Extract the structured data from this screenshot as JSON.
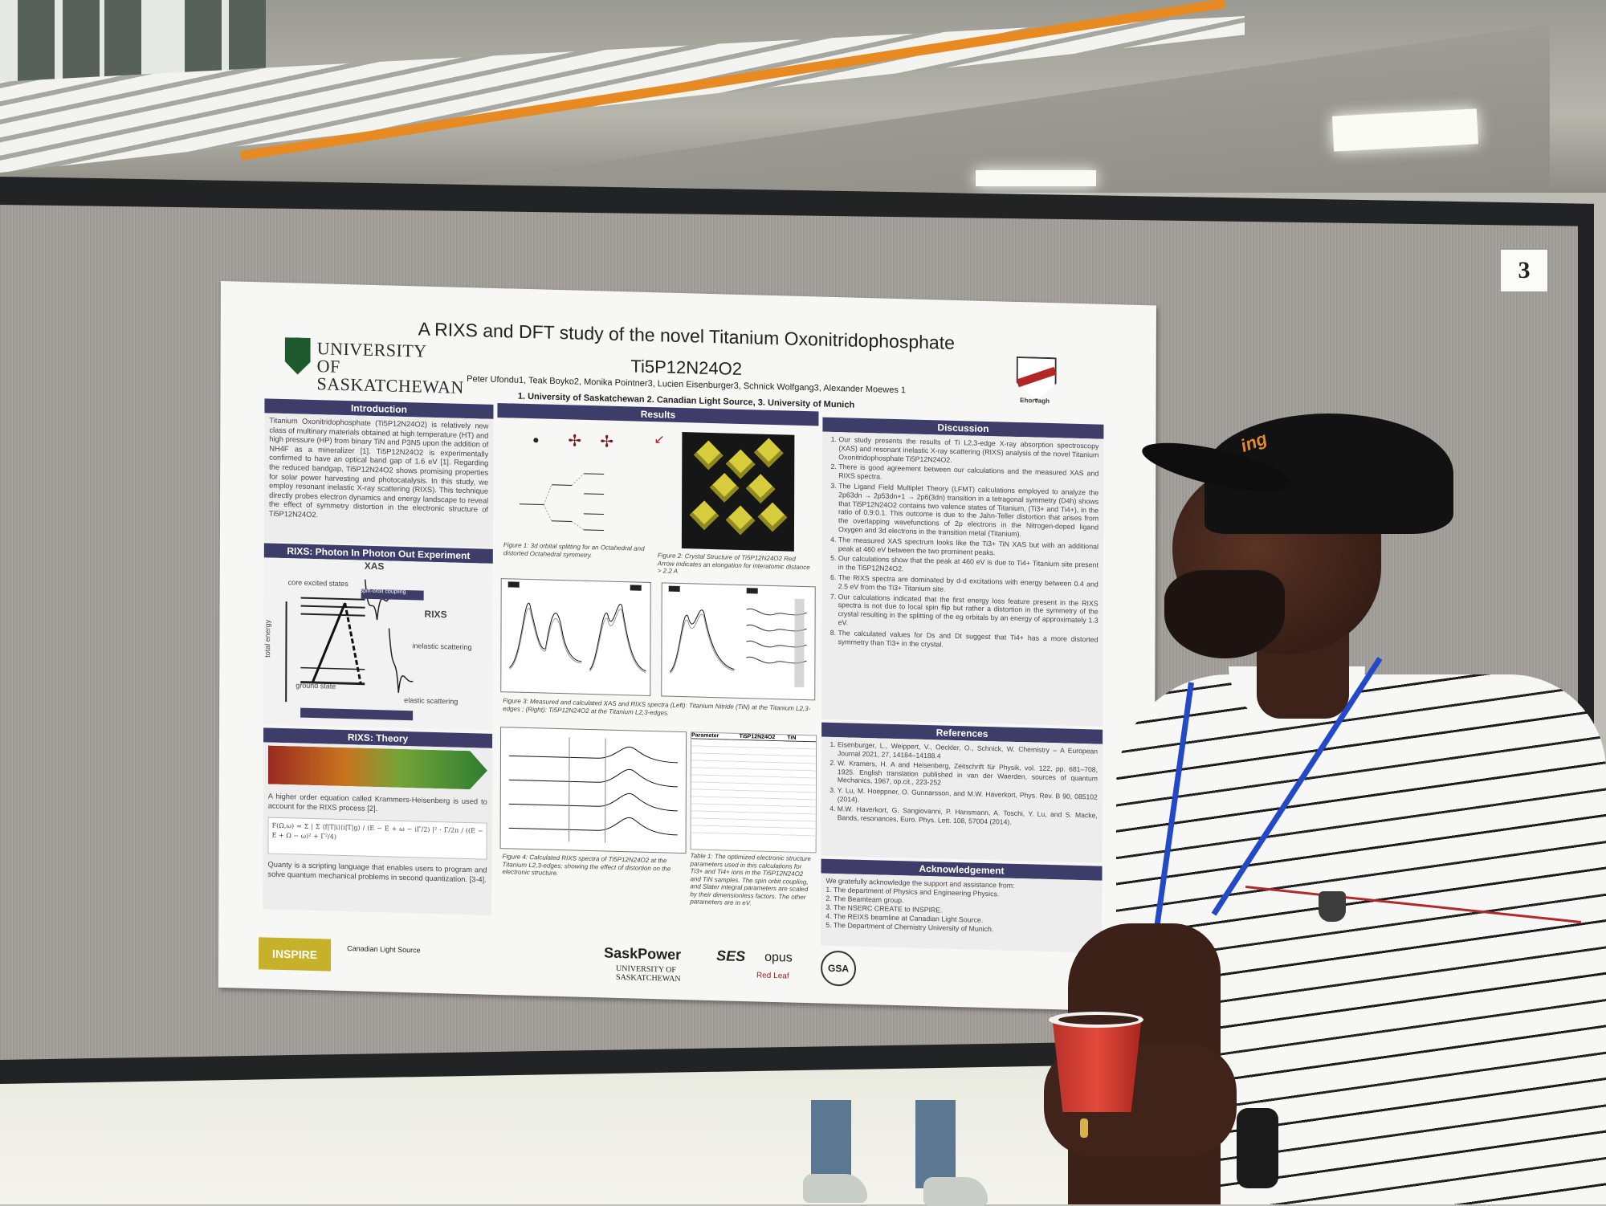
{
  "board_number": "3",
  "poster": {
    "title_line1": "A RIXS and DFT study of the novel Titanium Oxonitridophosphate",
    "title_line2": "Ti5P12N24O2",
    "authors": "Peter Ufondu1, Teak Boyko2, Monika Pointner3, Lucien Eisenburger3, Schnick Wolfgang3, Alexander Moewes 1",
    "affiliations": "1. University of Saskatchewan   2. Canadian Light Source, 3. University of Munich",
    "university_logo": "UNIVERSITY OF SASKATCHEWAN",
    "crest_motto": "Ehorvagh",
    "sections": {
      "introduction": {
        "heading": "Introduction",
        "text": "Titanium Oxonitridophosphate (Ti5P12N24O2) is relatively new class of multinary materials obtained at high temperature (HT) and high pressure (HP) from binary TiN and P3N5 upon the addition of NH4F as a mineralizer [1]. Ti5P12N24O2 is experimentally confirmed to have an optical band gap of 1.6 eV [1]. Regarding the reduced bandgap, Ti5P12N24O2 shows promising properties for solar power harvesting and photocatalysis. In this study, we employ resonant inelastic X-ray scattering (RIXS). This technique directly probes electron dynamics and energy landscape to reveal the effect of symmetry distortion in the electronic structure of Ti5P12N24O2."
      },
      "rixs_experiment": {
        "heading": "RIXS: Photon In Photon Out Experiment",
        "labels": [
          "XAS",
          "core excited states",
          "spin-orbit coupling",
          "RIXS",
          "total energy",
          "inelastic scattering",
          "ground state",
          "elastic scattering"
        ]
      },
      "rixs_theory": {
        "heading": "RIXS: Theory",
        "text1": "A higher order equation called Krammers-Heisenberg is used to account for the RIXS process [2].",
        "text2": "Quanty is a scripting language that enables users to program and solve quantum mechanical problems in second quantization. [3-4]."
      },
      "results": {
        "heading": "Results",
        "fig1": "Figure 1: 3d orbital splitting for an Octahedral and distorted Octahedral symmetry.",
        "fig2": "Figure 2: Crystal Structure of Ti5P12N24O2 Red Arrow indicates an elongation for interatomic distance > 2.2 A",
        "fig3": "Figure 3: Measured and calculated XAS and RIXS spectra (Left): Titanium Nitride (TiN) at the Titanium L2,3-edges ; (Right): Ti5P12N24O2 at the Titanium L2,3-edges.",
        "fig4": "Figure 4: Calculated RIXS spectra of Ti5P12N24O2 at the Titanium L2,3-edges; showing the effect of distortion on the electronic structure.",
        "table1": "Table 1: The optimized electronic structure parameters used in this calculations for Ti3+ and Ti4+ ions in the Ti5P12N24O2 and TiN samples. The spin orbit coupling, and Slater integral parameters are scaled by their dimensionless factors. The other parameters are in eV.",
        "table_headers": [
          "Parameter",
          "Ti5P12N24O2",
          "TiN"
        ]
      },
      "discussion": {
        "heading": "Discussion",
        "items": [
          "Our study presents the results of Ti L2,3-edge X-ray absorption spectroscopy (XAS) and resonant inelastic X-ray scattering (RIXS) analysis of the novel Titanium Oxonitridophosphate Ti5P12N24O2.",
          "There is good agreement between our calculations and the measured XAS and RIXS spectra.",
          "The Ligand Field Multiplet Theory (LFMT) calculations employed to analyze the 2p63dn → 2p53dn+1 → 2p6(3dn) transition in a tetragonal symmetry (D4h) shows that Ti5P12N24O2 contains two valence states of Titanium, (Ti3+ and Ti4+), in the ratio of 0.9:0.1. This outcome is due to the Jahn-Teller distortion that arises from the overlapping wavefunctions of 2p electrons in the Nitrogen-doped ligand Oxygen and 3d electrons in the transition metal (Titanium).",
          "The measured XAS spectrum looks like the Ti3+ TiN XAS but with an additional peak at 460 eV between the two prominent peaks.",
          "Our calculations show that the peak at 460 eV is due to Ti4+ Titanium site present in the Ti5P12N24O2.",
          "The RIXS spectra are dominated by d-d excitations with energy between 0.4 and 2.5 eV from the Ti3+ Titanium site.",
          "Our calculations indicated that the first energy loss feature present in the RIXS spectra is not due to local spin flip but rather a distortion in the symmetry of the crystal resulting in the splitting of the eg orbitals by an energy of approximately 1.3 eV.",
          "The calculated values for Ds and Dt suggest that Ti4+ has a more distorted symmetry than Ti3+ in the crystal."
        ]
      },
      "references": {
        "heading": "References",
        "items": [
          "Eisenburger, L., Weippert, V., Oeckler, O., Schnick, W. Chemistry – A European Journal 2021, 27, 14184–14188.4",
          "W. Kramers, H. A and Heisenberg, Zeitschrift für Physik, vol. 122, pp. 681–708, 1925. English translation published in van der Waerden, sources of quantum Mechanics, 1967, op.cit., 223-252",
          "Y. Lu, M. Hoeppner, O. Gunnarsson, and M.W. Haverkort, Phys. Rev. B 90, 085102 (2014).",
          "M.W. Haverkort, G. Sangiovanni, P. Hansmann, A. Toschi, Y. Lu, and S. Macke, Bands, resonances, Euro. Phys. Lett. 108, 57004 (2014)."
        ]
      },
      "acknowledgement": {
        "heading": "Acknowledgement",
        "intro": "We gratefully acknowledge the support and assistance from:",
        "items": [
          "1. The department of Physics and Engineering Physics.",
          "2. The Beamteam group.",
          "3. The NSERC CREATE to INSPIRE.",
          "4. The REIXS beamline at Canadian Light Source.",
          "5. The Department of Chemistry University of Munich."
        ]
      }
    },
    "sponsor_logos": [
      "INSPIRE",
      "Canadian Light Source",
      "SaskPower",
      "SES",
      "opus",
      "UNIVERSITY OF SASKATCHEWAN",
      "Red Leaf",
      "GSA"
    ]
  },
  "cap_logo": "ing"
}
